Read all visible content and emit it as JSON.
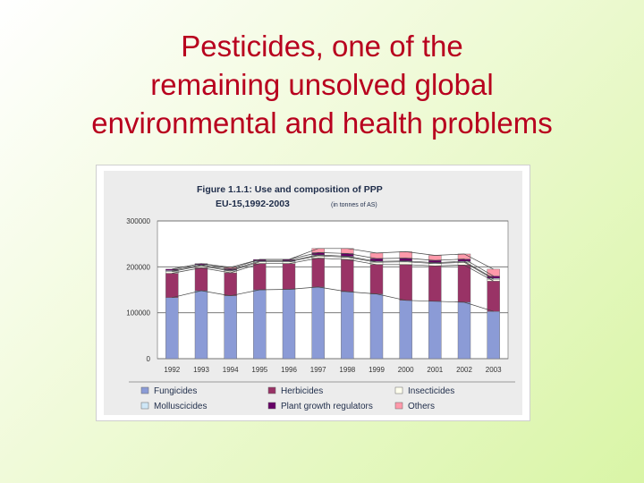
{
  "slide": {
    "title_lines": [
      "Pesticides, one of the",
      "remaining unsolved global",
      "environmental and health problems"
    ]
  },
  "chart_data": {
    "type": "bar",
    "stacked": true,
    "title": "Figure 1.1.1: Use and composition of PPP",
    "subtitle": "EU-15,1992-2003",
    "unit_note": "(in tonnes of AS)",
    "categories": [
      "1992",
      "1993",
      "1994",
      "1995",
      "1996",
      "1997",
      "1998",
      "1999",
      "2000",
      "2001",
      "2002",
      "2003"
    ],
    "y_ticks": [
      "0",
      "100000",
      "200000",
      "300000"
    ],
    "ylim": [
      0,
      300000
    ],
    "grid": true,
    "legend_position": "bottom",
    "series": [
      {
        "name": "Fungicides",
        "color": "#8b9bd6",
        "values": [
          133000,
          148000,
          137000,
          150000,
          151000,
          156000,
          146000,
          141000,
          127000,
          125000,
          123000,
          103000
        ]
      },
      {
        "name": "Herbicides",
        "color": "#993366",
        "values": [
          53000,
          50000,
          50000,
          57000,
          56000,
          63000,
          70000,
          64000,
          78000,
          77000,
          81000,
          66000
        ]
      },
      {
        "name": "Insecticides",
        "color": "#ffffee",
        "values": [
          4000,
          4000,
          4000,
          4000,
          4000,
          5000,
          5000,
          5000,
          6000,
          5000,
          6000,
          4000
        ]
      },
      {
        "name": "Molluscicides",
        "color": "#cfe7f7",
        "values": [
          2000,
          2000,
          2000,
          2000,
          2000,
          2000,
          2000,
          2000,
          2000,
          2000,
          2000,
          2000
        ]
      },
      {
        "name": "Plant growth regulators",
        "color": "#660066",
        "values": [
          3000,
          3000,
          3000,
          3000,
          3000,
          5000,
          6000,
          6000,
          6000,
          5000,
          5000,
          5000
        ]
      },
      {
        "name": "Others",
        "color": "#ff99aa",
        "values": [
          0,
          0,
          3000,
          0,
          0,
          9000,
          11000,
          12000,
          14000,
          11000,
          11000,
          15000
        ]
      }
    ]
  }
}
